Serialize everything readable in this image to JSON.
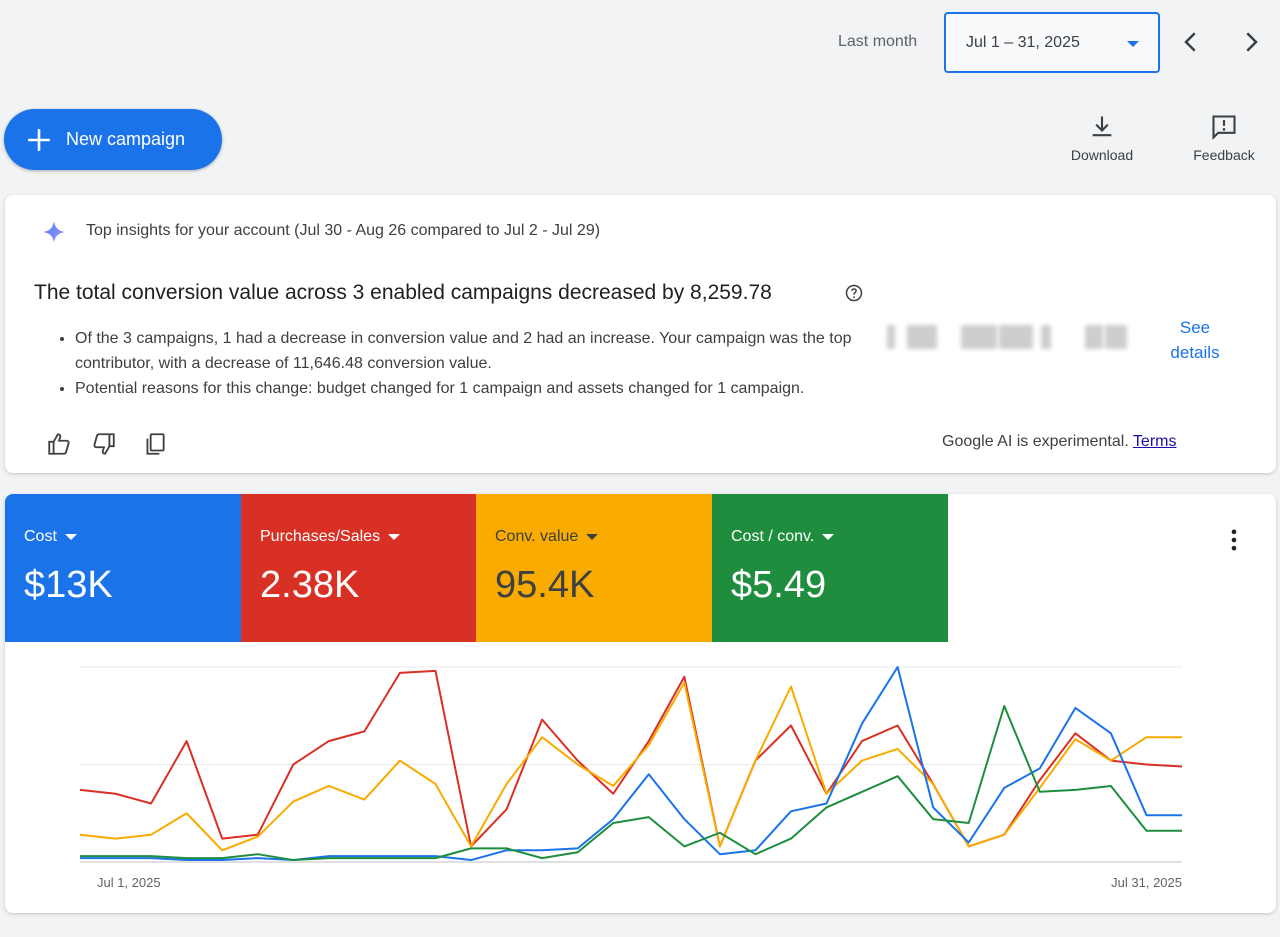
{
  "header": {
    "period_label": "Last month",
    "date_range": "Jul 1 – 31, 2025",
    "prev_icon": "chevron-left-icon",
    "next_icon": "chevron-right-icon"
  },
  "actions": {
    "new_campaign_label": "New campaign",
    "download_label": "Download",
    "feedback_label": "Feedback"
  },
  "insights": {
    "heading": "Top insights for your account (Jul 30 - Aug 26 compared to Jul 2 - Jul 29)",
    "title": "The total conversion value across 3 enabled campaigns decreased by 8,259.78",
    "bullets": [
      "Of the 3 campaigns, 1 had a decrease in conversion value and 2 had an increase. Your campaign was the top contributor, with a decrease of 11,646.48 conversion value.",
      "Potential reasons for this change: budget changed for 1 campaign and assets changed for 1 campaign."
    ],
    "see_details_label": "See details",
    "disclaimer": "Google AI is experimental.",
    "terms_label": "Terms"
  },
  "metrics": [
    {
      "label": "Cost",
      "value": "$13K",
      "color": "#1a73e8",
      "text_color": "#ffffff"
    },
    {
      "label": "Purchases/Sales",
      "value": "2.38K",
      "color": "#d93025",
      "text_color": "#ffffff"
    },
    {
      "label": "Conv. value",
      "value": "95.4K",
      "color": "#f9ab00",
      "text_color": "#3c4043"
    },
    {
      "label": "Cost / conv.",
      "value": "$5.49",
      "color": "#1e8e3e",
      "text_color": "#ffffff"
    }
  ],
  "chart_data": {
    "type": "line",
    "x_start_label": "Jul 1, 2025",
    "x_end_label": "Jul 31, 2025",
    "x": [
      1,
      2,
      3,
      4,
      5,
      6,
      7,
      8,
      9,
      10,
      11,
      12,
      13,
      14,
      15,
      16,
      17,
      18,
      19,
      20,
      21,
      22,
      23,
      24,
      25,
      26,
      27,
      28,
      29,
      30,
      31,
      32
    ],
    "ylim": [
      0,
      100
    ],
    "gridlines": [
      0,
      50,
      100
    ],
    "series": [
      {
        "color": "#d93025",
        "values": [
          37,
          35,
          30,
          62,
          12,
          14,
          50,
          62,
          67,
          97,
          98,
          8,
          27,
          73,
          52,
          35,
          62,
          95,
          8,
          52,
          70,
          35,
          62,
          70,
          40,
          8,
          14,
          42,
          66,
          52,
          50,
          49
        ]
      },
      {
        "color": "#f9ab00",
        "values": [
          14,
          12,
          14,
          25,
          6,
          13,
          31,
          39,
          32,
          52,
          40,
          8,
          40,
          64,
          50,
          39,
          60,
          92,
          8,
          52,
          90,
          35,
          52,
          58,
          40,
          8,
          14,
          38,
          63,
          52,
          64,
          64
        ]
      },
      {
        "color": "#1a73e8",
        "values": [
          2,
          2,
          2,
          1,
          1,
          2,
          1,
          3,
          3,
          3,
          3,
          1,
          6,
          6,
          7,
          22,
          45,
          22,
          4,
          6,
          26,
          30,
          71,
          100,
          28,
          10,
          38,
          48,
          79,
          66,
          24,
          24
        ]
      },
      {
        "color": "#1e8e3e",
        "values": [
          3,
          3,
          3,
          2,
          2,
          4,
          1,
          2,
          2,
          2,
          2,
          7,
          7,
          2,
          5,
          20,
          23,
          8,
          15,
          4,
          12,
          28,
          36,
          44,
          22,
          20,
          80,
          36,
          37,
          39,
          16,
          16
        ]
      }
    ]
  },
  "icons": {
    "sparkle": "sparkle-icon",
    "help": "help-icon",
    "thumbs_up": "thumbs-up-icon",
    "thumbs_down": "thumbs-down-icon",
    "copy": "copy-icon",
    "more": "more-vert-icon"
  }
}
